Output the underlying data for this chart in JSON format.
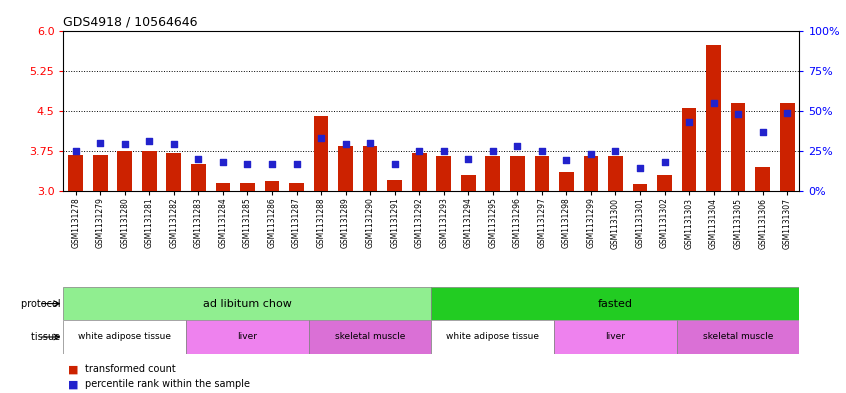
{
  "title": "GDS4918 / 10564646",
  "samples": [
    "GSM1131278",
    "GSM1131279",
    "GSM1131280",
    "GSM1131281",
    "GSM1131282",
    "GSM1131283",
    "GSM1131284",
    "GSM1131285",
    "GSM1131286",
    "GSM1131287",
    "GSM1131288",
    "GSM1131289",
    "GSM1131290",
    "GSM1131291",
    "GSM1131292",
    "GSM1131293",
    "GSM1131294",
    "GSM1131295",
    "GSM1131296",
    "GSM1131297",
    "GSM1131298",
    "GSM1131299",
    "GSM1131300",
    "GSM1131301",
    "GSM1131302",
    "GSM1131303",
    "GSM1131304",
    "GSM1131305",
    "GSM1131306",
    "GSM1131307"
  ],
  "red_values": [
    3.68,
    3.68,
    3.75,
    3.75,
    3.7,
    3.5,
    3.15,
    3.15,
    3.18,
    3.15,
    4.4,
    3.85,
    3.85,
    3.2,
    3.7,
    3.65,
    3.3,
    3.65,
    3.65,
    3.65,
    3.35,
    3.65,
    3.65,
    3.12,
    3.3,
    4.55,
    5.75,
    4.65,
    3.45,
    4.65
  ],
  "blue_values": [
    25,
    30,
    29,
    31,
    29,
    20,
    18,
    17,
    17,
    17,
    33,
    29,
    30,
    17,
    25,
    25,
    20,
    25,
    28,
    25,
    19,
    23,
    25,
    14,
    18,
    43,
    55,
    48,
    37,
    49
  ],
  "protocol_groups": [
    {
      "label": "ad libitum chow",
      "start": 0,
      "end": 14,
      "color": "#90ee90"
    },
    {
      "label": "fasted",
      "start": 15,
      "end": 29,
      "color": "#22cc22"
    }
  ],
  "tissue_groups": [
    {
      "label": "white adipose tissue",
      "start": 0,
      "end": 4,
      "color": "#ffffff"
    },
    {
      "label": "liver",
      "start": 5,
      "end": 9,
      "color": "#ee82ee"
    },
    {
      "label": "skeletal muscle",
      "start": 10,
      "end": 14,
      "color": "#ee82ee"
    },
    {
      "label": "white adipose tissue",
      "start": 15,
      "end": 19,
      "color": "#ffffff"
    },
    {
      "label": "liver",
      "start": 20,
      "end": 24,
      "color": "#ee82ee"
    },
    {
      "label": "skeletal muscle",
      "start": 25,
      "end": 29,
      "color": "#ee82ee"
    }
  ],
  "ylim_left": [
    3.0,
    6.0
  ],
  "ylim_right": [
    0,
    100
  ],
  "yticks_left": [
    3.0,
    3.75,
    4.5,
    5.25,
    6.0
  ],
  "yticks_right": [
    0,
    25,
    50,
    75,
    100
  ],
  "ytick_labels_right": [
    "0%",
    "25%",
    "50%",
    "75%",
    "100%"
  ],
  "hlines": [
    3.75,
    4.5,
    5.25
  ],
  "bar_color": "#cc2200",
  "dot_color": "#2222cc",
  "bar_width": 0.6,
  "legend_items": [
    {
      "label": "transformed count",
      "color": "#cc2200"
    },
    {
      "label": "percentile rank within the sample",
      "color": "#2222cc"
    }
  ],
  "fig_width": 8.46,
  "fig_height": 3.93,
  "dpi": 100
}
